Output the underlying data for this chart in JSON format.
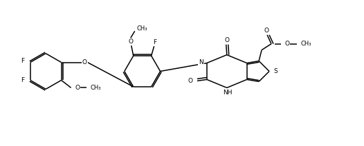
{
  "figsize": [
    5.26,
    2.12
  ],
  "dpi": 100,
  "bg": "#ffffff",
  "lc": "#000000",
  "lw": 1.1,
  "fs": 6.5,
  "xlim": [
    0,
    10.5
  ],
  "ylim": [
    0,
    4.0
  ]
}
